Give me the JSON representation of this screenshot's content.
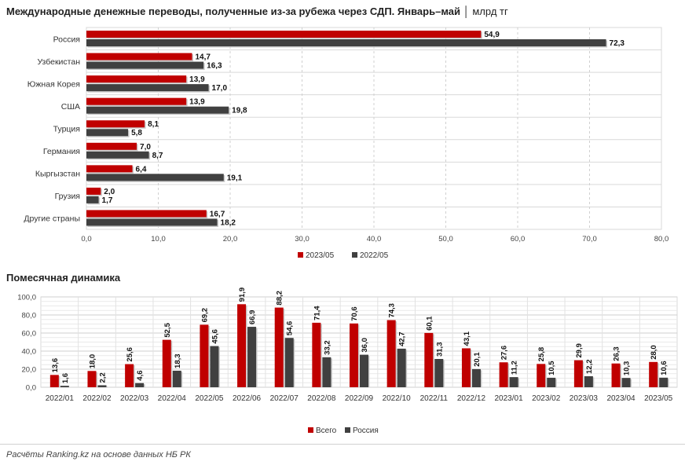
{
  "header": {
    "title": "Международные денежные переводы, полученные из-за рубежа через СДП. Январь–май",
    "unit": "│ млрд тг"
  },
  "section2": {
    "title": "Помесячная динамика"
  },
  "footer": {
    "note": "Расчёты Ranking.kz на основе данных НБ РК"
  },
  "colors": {
    "primary": "#c00000",
    "secondary": "#404040"
  },
  "chart_data": [
    {
      "type": "bar",
      "orientation": "horizontal",
      "categories": [
        "Россия",
        "Узбекистан",
        "Южная Корея",
        "США",
        "Турция",
        "Германия",
        "Кыргызстан",
        "Грузия",
        "Другие страны"
      ],
      "series": [
        {
          "name": "2023/05",
          "values": [
            54.9,
            14.7,
            13.9,
            13.9,
            8.1,
            7.0,
            6.4,
            2.0,
            16.7
          ],
          "labels": [
            "54,9",
            "14,7",
            "13,9",
            "13,9",
            "8,1",
            "7,0",
            "6,4",
            "2,0",
            "16,7"
          ]
        },
        {
          "name": "2022/05",
          "values": [
            72.3,
            16.3,
            17.0,
            19.8,
            5.8,
            8.7,
            19.1,
            1.7,
            18.2
          ],
          "labels": [
            "72,3",
            "16,3",
            "17,0",
            "19,8",
            "5,8",
            "8,7",
            "19,1",
            "1,7",
            "18,2"
          ]
        }
      ],
      "xlim": [
        0,
        80
      ],
      "ticks": [
        0,
        10,
        20,
        30,
        40,
        50,
        60,
        70,
        80
      ],
      "tick_labels": [
        "0,0",
        "10,0",
        "20,0",
        "30,0",
        "40,0",
        "50,0",
        "60,0",
        "70,0",
        "80,0"
      ],
      "grid": true,
      "legend": "bottom"
    },
    {
      "type": "bar",
      "categories": [
        "2022/01",
        "2022/02",
        "2022/03",
        "2022/04",
        "2022/05",
        "2022/06",
        "2022/07",
        "2022/08",
        "2022/09",
        "2022/10",
        "2022/11",
        "2022/12",
        "2023/01",
        "2023/02",
        "2023/03",
        "2023/04",
        "2023/05"
      ],
      "series": [
        {
          "name": "Всего",
          "values": [
            13.6,
            18.0,
            25.6,
            52.5,
            69.2,
            91.9,
            88.2,
            71.4,
            70.6,
            74.3,
            60.1,
            43.1,
            27.6,
            25.8,
            29.9,
            26.3,
            28.0
          ],
          "labels": [
            "13,6",
            "18,0",
            "25,6",
            "52,5",
            "69,2",
            "91,9",
            "88,2",
            "71,4",
            "70,6",
            "74,3",
            "60,1",
            "43,1",
            "27,6",
            "25,8",
            "29,9",
            "26,3",
            "28,0"
          ]
        },
        {
          "name": "Россия",
          "values": [
            1.6,
            2.2,
            4.6,
            18.3,
            45.6,
            66.9,
            54.6,
            33.2,
            36.0,
            42.7,
            31.3,
            20.1,
            11.2,
            10.5,
            12.2,
            10.3,
            10.6
          ],
          "labels": [
            "1,6",
            "2,2",
            "4,6",
            "18,3",
            "45,6",
            "66,9",
            "54,6",
            "33,2",
            "36,0",
            "42,7",
            "31,3",
            "20,1",
            "11,2",
            "10,5",
            "12,2",
            "10,3",
            "10,6"
          ]
        }
      ],
      "ylim": [
        0,
        100
      ],
      "ticks": [
        0,
        20,
        40,
        60,
        80,
        100
      ],
      "tick_labels": [
        "0,0",
        "20,0",
        "40,0",
        "60,0",
        "80,0",
        "100,0"
      ],
      "grid": true,
      "legend": "bottom"
    }
  ]
}
